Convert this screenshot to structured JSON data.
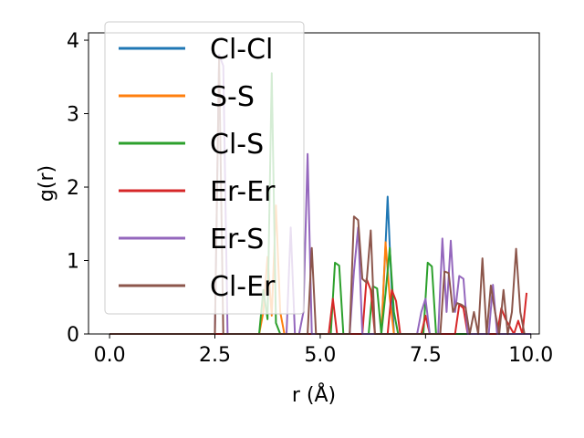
{
  "chart_data": {
    "type": "line",
    "title": "",
    "xlabel": "r (Å)",
    "ylabel": "g(r)",
    "xlim": [
      -0.5,
      10.2
    ],
    "ylim": [
      0,
      4.1
    ],
    "xticks": [
      "0.0",
      "2.5",
      "5.0",
      "7.5",
      "10.0"
    ],
    "xtick_values": [
      0,
      2.5,
      5,
      7.5,
      10
    ],
    "yticks": [
      "0",
      "1",
      "2",
      "3",
      "4"
    ],
    "ytick_values": [
      0,
      1,
      2,
      3,
      4
    ],
    "grid": false,
    "legend_position": "upper-left",
    "series": [
      {
        "name": "Cl-Cl",
        "color": "#1f77b4",
        "x": [
          0,
          6.45,
          6.55,
          6.6,
          6.65,
          6.75,
          10
        ],
        "y": [
          0,
          0,
          1.2,
          1.87,
          1.2,
          0,
          0
        ]
      },
      {
        "name": "S-S",
        "color": "#ff7f0e",
        "x": [
          0,
          3.55,
          3.65,
          3.75,
          3.85,
          3.95,
          4.05,
          4.15,
          6.45,
          6.55,
          6.65,
          6.75,
          10
        ],
        "y": [
          0,
          0,
          0.3,
          1.05,
          0.25,
          1.75,
          0.3,
          0,
          0,
          1.25,
          0.5,
          0,
          0
        ]
      },
      {
        "name": "Cl-S",
        "color": "#2ca02c",
        "x": [
          0,
          3.55,
          3.65,
          3.75,
          3.85,
          3.95,
          4.05,
          5.25,
          5.35,
          5.45,
          5.55,
          6.15,
          6.25,
          6.35,
          6.45,
          6.55,
          6.65,
          6.75,
          6.85,
          7.45,
          7.55,
          7.65,
          7.75,
          10
        ],
        "y": [
          0,
          0,
          0.6,
          0.2,
          3.55,
          0.15,
          0,
          0,
          0.97,
          0.93,
          0,
          0,
          0.65,
          0.62,
          0,
          0.55,
          1.17,
          0.3,
          0,
          0,
          0.97,
          0.92,
          0,
          0
        ]
      },
      {
        "name": "Er-Er",
        "color": "#d62728",
        "x": [
          0,
          5.2,
          5.3,
          5.4,
          6.0,
          6.1,
          6.2,
          6.3,
          6.6,
          6.7,
          6.8,
          6.9,
          7.4,
          7.5,
          7.6,
          8.2,
          8.3,
          8.4,
          8.5,
          9.2,
          9.3,
          9.4,
          9.6,
          9.7,
          9.8,
          9.9
        ],
        "y": [
          0,
          0,
          0.48,
          0,
          0,
          0.75,
          0.6,
          0,
          0,
          0.6,
          0.45,
          0,
          0,
          0.25,
          0,
          0,
          0.4,
          0.35,
          0,
          0,
          0.35,
          0.2,
          0,
          0.18,
          0,
          0.56
        ]
      },
      {
        "name": "Er-S",
        "color": "#9467bd",
        "x": [
          0,
          2.5,
          2.6,
          2.7,
          2.8,
          4.2,
          4.3,
          4.4,
          4.5,
          4.6,
          4.7,
          4.8,
          5.7,
          5.8,
          5.9,
          6.0,
          7.3,
          7.4,
          7.5,
          7.6,
          7.8,
          7.9,
          8.0,
          8.1,
          8.2,
          8.3,
          8.4,
          8.5,
          9.0,
          9.1,
          9.2,
          10
        ],
        "y": [
          0,
          0,
          3.8,
          3.65,
          0,
          0,
          1.45,
          0,
          0,
          0.3,
          2.45,
          0,
          0,
          0.85,
          1.45,
          0,
          0,
          0.3,
          0.48,
          0,
          0,
          1.3,
          0.3,
          1.27,
          0.3,
          0.79,
          0.75,
          0,
          0,
          0.67,
          0,
          0
        ]
      },
      {
        "name": "Cl-Er",
        "color": "#8c564b",
        "x": [
          0,
          2.5,
          2.6,
          2.7,
          4.7,
          4.8,
          4.9,
          5.7,
          5.8,
          5.9,
          6.0,
          6.1,
          6.2,
          6.3,
          7.85,
          7.95,
          8.05,
          8.15,
          8.25,
          8.35,
          8.45,
          8.55,
          8.65,
          8.75,
          8.85,
          8.95,
          9.05,
          9.15,
          9.25,
          9.35,
          9.45,
          9.55,
          9.65,
          9.75,
          9.85
        ],
        "y": [
          0,
          0,
          3.75,
          0,
          0,
          1.17,
          0,
          0,
          1.6,
          1.55,
          0.75,
          0.7,
          1.41,
          0,
          0,
          0.85,
          0.83,
          0.3,
          0.42,
          0.4,
          0.36,
          0,
          0.3,
          0,
          1.03,
          0,
          0.66,
          0.3,
          0,
          0.6,
          0,
          0.3,
          1.16,
          0.3,
          0
        ]
      }
    ]
  }
}
